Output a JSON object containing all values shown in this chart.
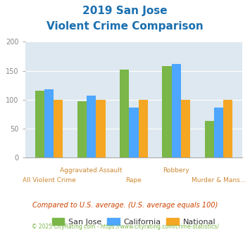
{
  "title_line1": "2019 San Jose",
  "title_line2": "Violent Crime Comparison",
  "title_color": "#1a6faf",
  "san_jose": [
    116,
    98,
    152,
    158,
    63
  ],
  "california": [
    118,
    107,
    87,
    162,
    86
  ],
  "national": [
    100,
    100,
    100,
    100,
    100
  ],
  "top_labels": [
    "",
    "Aggravated Assault",
    "",
    "Robbery",
    ""
  ],
  "bot_labels": [
    "All Violent Crime",
    "",
    "Rape",
    "",
    "Murder & Mans..."
  ],
  "color_sj": "#7ab648",
  "color_ca": "#4da6ff",
  "color_nat": "#f5a623",
  "ylim": [
    0,
    200
  ],
  "yticks": [
    0,
    50,
    100,
    150,
    200
  ],
  "chart_bg": "#dde8f0",
  "fig_bg": "#ffffff",
  "legend_labels": [
    "San Jose",
    "California",
    "National"
  ],
  "note": "Compared to U.S. average. (U.S. average equals 100)",
  "note_color": "#cc4400",
  "copyright": "© 2025 CityRating.com - https://www.cityrating.com/crime-statistics/",
  "copyright_color": "#7ab648",
  "label_color": "#cc8833",
  "ytick_color": "#888888",
  "spine_color": "#aaaaaa"
}
